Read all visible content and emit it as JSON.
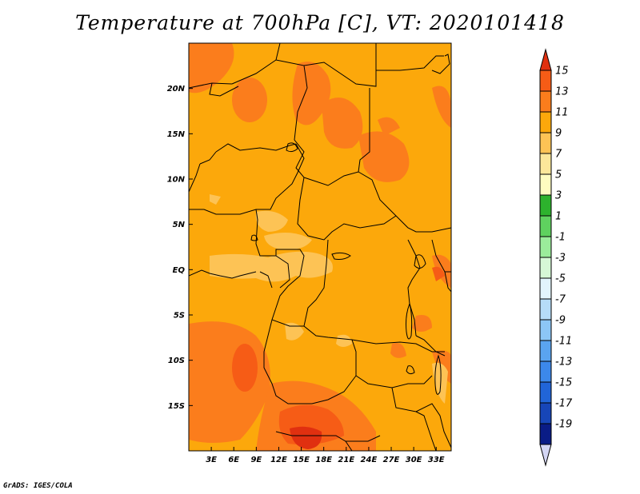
{
  "title": "Temperature at 700hPa [C], VT: 2020101418",
  "credit": "GrADS: IGES/COLA",
  "map": {
    "lon_range": [
      0,
      35
    ],
    "lat_range": [
      -20,
      25
    ],
    "lon_ticks": [
      {
        "value": 3,
        "label": "3E"
      },
      {
        "value": 6,
        "label": "6E"
      },
      {
        "value": 9,
        "label": "9E"
      },
      {
        "value": 12,
        "label": "12E"
      },
      {
        "value": 15,
        "label": "15E"
      },
      {
        "value": 18,
        "label": "18E"
      },
      {
        "value": 21,
        "label": "21E"
      },
      {
        "value": 24,
        "label": "24E"
      },
      {
        "value": 27,
        "label": "27E"
      },
      {
        "value": 30,
        "label": "30E"
      },
      {
        "value": 33,
        "label": "33E"
      }
    ],
    "lat_ticks": [
      {
        "value": 20,
        "label": "20N"
      },
      {
        "value": 15,
        "label": "15N"
      },
      {
        "value": 10,
        "label": "10N"
      },
      {
        "value": 5,
        "label": "5N"
      },
      {
        "value": 0,
        "label": "EQ"
      },
      {
        "value": -5,
        "label": "5S"
      },
      {
        "value": -10,
        "label": "10S"
      },
      {
        "value": -15,
        "label": "15S"
      }
    ],
    "background_color": "#fca80b"
  },
  "colorbar": {
    "labels": [
      "15",
      "13",
      "11",
      "9",
      "7",
      "5",
      "3",
      "1",
      "-1",
      "-3",
      "-5",
      "-7",
      "-9",
      "-11",
      "-13",
      "-15",
      "-17",
      "-19"
    ],
    "colors": [
      "#e03010",
      "#f65c16",
      "#fb7d1c",
      "#fca80b",
      "#fdc355",
      "#fce79a",
      "#fefcc0",
      "#2db22d",
      "#5fd15f",
      "#9bec9b",
      "#d6f8d6",
      "#e2f4fc",
      "#b6dcf8",
      "#8cc6f6",
      "#5aa4f0",
      "#3c88ea",
      "#2165d8",
      "#1746b8",
      "#0a1c86",
      "#d4d6f4"
    ]
  }
}
